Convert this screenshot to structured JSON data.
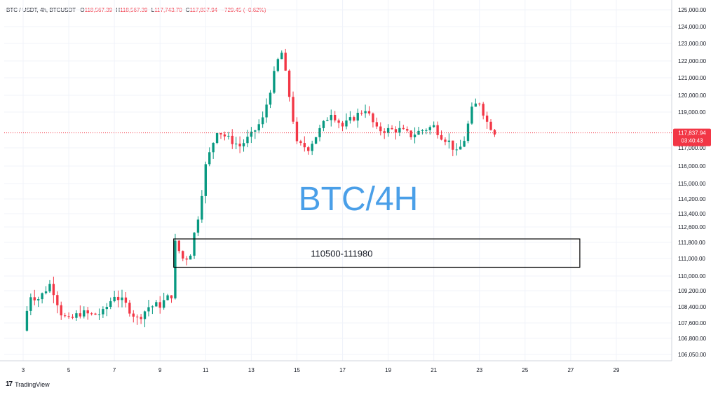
{
  "header": {
    "symbol": "BTC / USDT, 4h, BTCUSDT",
    "open_label": "O",
    "open": "118,567.39",
    "high_label": "H",
    "high": "118,567.39",
    "low_label": "L",
    "low": "117,743.70",
    "close_label": "C",
    "close": "117,837.94",
    "change": "−729.45 (−0.62%)"
  },
  "branding": {
    "logo": "17",
    "name": "TradingView"
  },
  "colors": {
    "up": "#089981",
    "down": "#f23645",
    "axis_text": "#131722",
    "grid": "#f0f3fa",
    "title": "#4a9fe8"
  },
  "chart_data": {
    "type": "candlestick",
    "title": "BTC/4H",
    "annotation": {
      "label": "110500-111980",
      "low": 110500,
      "high": 111980,
      "from_day": 9.6,
      "to_day": 27.4
    },
    "current_price": {
      "value": 117837.94,
      "label": "117,837.94",
      "countdown": "03:40:43"
    },
    "xlim": [
      2.3,
      31.5
    ],
    "x_ticks": [
      3,
      5,
      7,
      9,
      11,
      13,
      15,
      17,
      19,
      21,
      23,
      25,
      27,
      29
    ],
    "y_ticks": [
      {
        "v": 106050,
        "label": "106,050.00"
      },
      {
        "v": 106800,
        "label": "106,800.00"
      },
      {
        "v": 107600,
        "label": "107,600.00"
      },
      {
        "v": 108400,
        "label": "108,400.00"
      },
      {
        "v": 109200,
        "label": "109,200.00"
      },
      {
        "v": 110000,
        "label": "110,000.00"
      },
      {
        "v": 111000,
        "label": "111,000.00"
      },
      {
        "v": 111800,
        "label": "111,800.00"
      },
      {
        "v": 112600,
        "label": "112,600.00"
      },
      {
        "v": 113400,
        "label": "113,400.00"
      },
      {
        "v": 114200,
        "label": "114,200.00"
      },
      {
        "v": 115000,
        "label": "115,000.00"
      },
      {
        "v": 116000,
        "label": "116,000.00"
      },
      {
        "v": 117000,
        "label": "117,000.00"
      },
      {
        "v": 119000,
        "label": "119,000.00"
      },
      {
        "v": 120000,
        "label": "120,000.00"
      },
      {
        "v": 121000,
        "label": "121,000.00"
      },
      {
        "v": 122000,
        "label": "122,000.00"
      },
      {
        "v": 123000,
        "label": "123,000.00"
      },
      {
        "v": 124000,
        "label": "124,000.00"
      },
      {
        "v": 125000,
        "label": "125,000.00"
      }
    ],
    "anchors": [
      [
        3.0,
        107200
      ],
      [
        3.3,
        109000
      ],
      [
        3.7,
        108800
      ],
      [
        4.2,
        109600
      ],
      [
        4.7,
        108000
      ],
      [
        5.0,
        107700
      ],
      [
        5.5,
        108100
      ],
      [
        6.0,
        108000
      ],
      [
        6.5,
        108100
      ],
      [
        7.0,
        109000
      ],
      [
        7.5,
        108500
      ],
      [
        8.0,
        107800
      ],
      [
        8.5,
        108400
      ],
      [
        9.0,
        108500
      ],
      [
        9.5,
        109000
      ],
      [
        9.6,
        111900
      ],
      [
        10.0,
        111000
      ],
      [
        10.3,
        111100
      ],
      [
        10.7,
        113400
      ],
      [
        11.0,
        116000
      ],
      [
        11.5,
        118000
      ],
      [
        12.0,
        117500
      ],
      [
        12.5,
        117100
      ],
      [
        13.0,
        117700
      ],
      [
        13.5,
        118600
      ],
      [
        14.0,
        121200
      ],
      [
        14.3,
        122700
      ],
      [
        14.6,
        120500
      ],
      [
        15.0,
        117200
      ],
      [
        15.5,
        117000
      ],
      [
        16.0,
        118000
      ],
      [
        16.5,
        119000
      ],
      [
        17.0,
        118200
      ],
      [
        17.5,
        118700
      ],
      [
        18.0,
        119200
      ],
      [
        18.5,
        118000
      ],
      [
        19.0,
        118000
      ],
      [
        19.5,
        118000
      ],
      [
        20.0,
        117700
      ],
      [
        20.5,
        118000
      ],
      [
        21.0,
        118200
      ],
      [
        21.3,
        117700
      ],
      [
        21.7,
        117300
      ],
      [
        22.0,
        116700
      ],
      [
        22.3,
        117300
      ],
      [
        22.7,
        119300
      ],
      [
        23.0,
        119600
      ],
      [
        23.3,
        118500
      ],
      [
        23.7,
        117838
      ]
    ],
    "bars_per_day": 6
  }
}
